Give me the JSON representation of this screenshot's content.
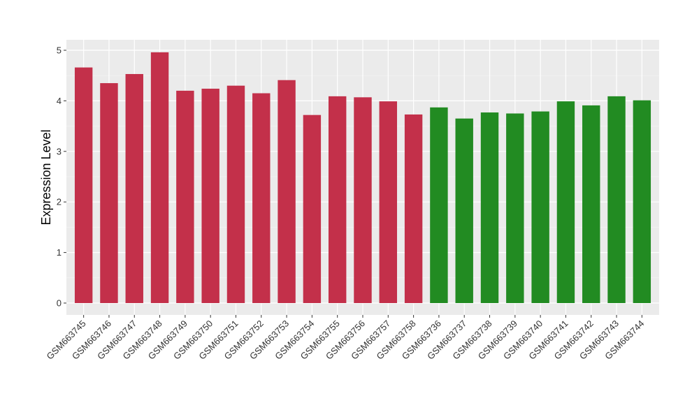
{
  "chart_data": {
    "type": "bar",
    "title": "",
    "xlabel": "",
    "ylabel": "Expression Level",
    "ylim": [
      -0.22,
      5.2
    ],
    "yticks": [
      0,
      1,
      2,
      3,
      4,
      5
    ],
    "grid": true,
    "background": "#ebebeb",
    "categories": [
      "GSM663745",
      "GSM663746",
      "GSM663747",
      "GSM663748",
      "GSM663749",
      "GSM663750",
      "GSM663751",
      "GSM663752",
      "GSM663753",
      "GSM663754",
      "GSM663755",
      "GSM663756",
      "GSM663757",
      "GSM663758",
      "GSM663736",
      "GSM663737",
      "GSM663738",
      "GSM663739",
      "GSM663740",
      "GSM663741",
      "GSM663742",
      "GSM663743",
      "GSM663744"
    ],
    "values": [
      4.66,
      4.35,
      4.53,
      4.96,
      4.2,
      4.24,
      4.3,
      4.15,
      4.41,
      3.72,
      4.09,
      4.07,
      3.99,
      3.73,
      3.87,
      3.65,
      3.77,
      3.75,
      3.79,
      3.99,
      3.91,
      4.09,
      4.01
    ],
    "colors": [
      "#c3304a",
      "#c3304a",
      "#c3304a",
      "#c3304a",
      "#c3304a",
      "#c3304a",
      "#c3304a",
      "#c3304a",
      "#c3304a",
      "#c3304a",
      "#c3304a",
      "#c3304a",
      "#c3304a",
      "#c3304a",
      "#228b22",
      "#228b22",
      "#228b22",
      "#228b22",
      "#228b22",
      "#228b22",
      "#228b22",
      "#228b22",
      "#228b22"
    ]
  }
}
